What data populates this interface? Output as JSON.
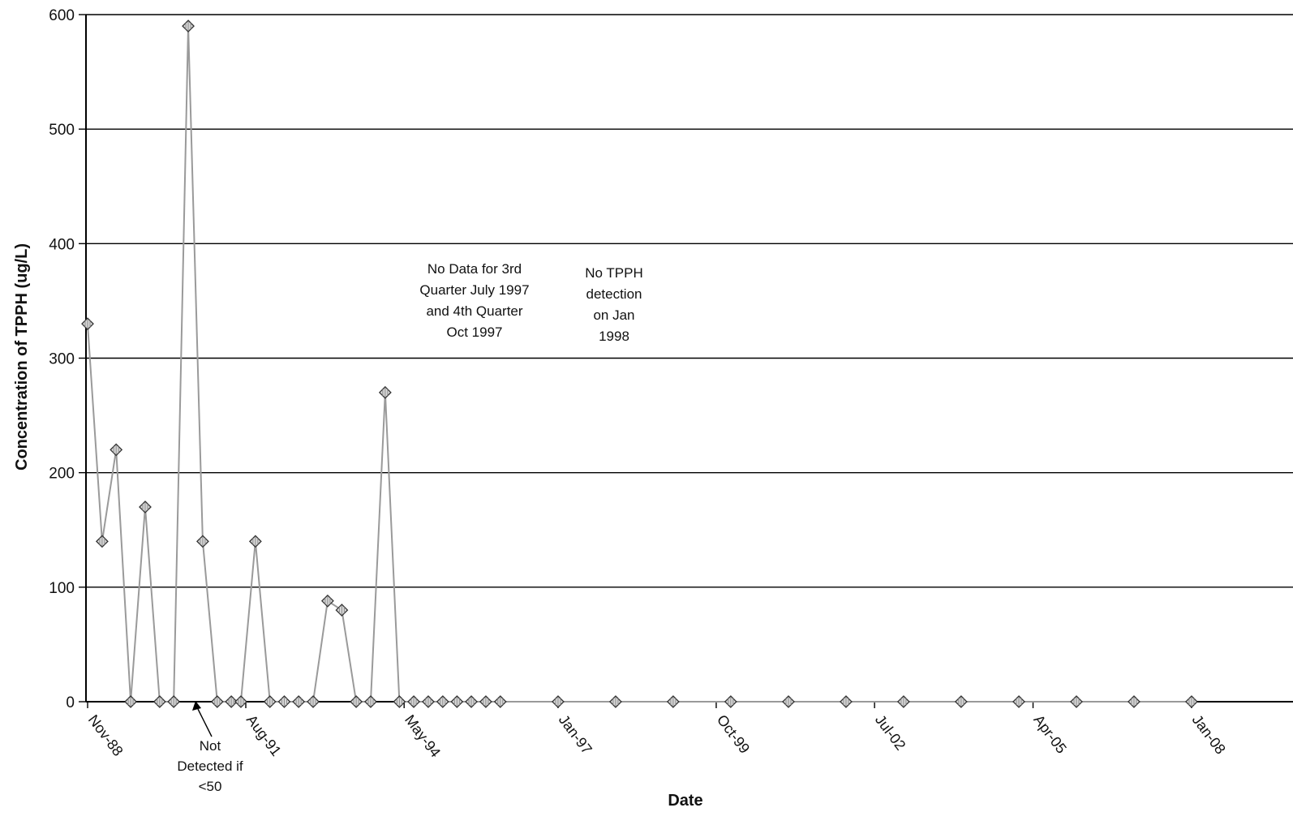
{
  "chart_data": {
    "type": "line",
    "xlabel": "Date",
    "ylabel": "Concentration of TPPH (ug/L)",
    "ylim": [
      0,
      600
    ],
    "yticks": [
      0,
      100,
      200,
      300,
      400,
      500,
      600
    ],
    "xlim": [
      "1988-11-01",
      "2010-11-01"
    ],
    "xticks": [
      {
        "date": "1988-11-01",
        "label": "Nov-88"
      },
      {
        "date": "1991-08-01",
        "label": "Aug-91"
      },
      {
        "date": "1994-05-01",
        "label": "May-94"
      },
      {
        "date": "1997-01-01",
        "label": "Jan-97"
      },
      {
        "date": "1999-10-01",
        "label": "Oct-99"
      },
      {
        "date": "2002-07-01",
        "label": "Jul-02"
      },
      {
        "date": "2005-04-01",
        "label": "Apr-05"
      },
      {
        "date": "2008-01-01",
        "label": "Jan-08"
      }
    ],
    "grid": true,
    "line_color": "#9a9a9a",
    "marker_color": "#8a8a8a",
    "series": [
      {
        "points": [
          [
            "1988-11-01",
            330
          ],
          [
            "1989-02-01",
            140
          ],
          [
            "1989-05-01",
            220
          ],
          [
            "1989-08-01",
            0
          ],
          [
            "1989-11-01",
            170
          ],
          [
            "1990-02-01",
            0
          ],
          [
            "1990-05-01",
            0
          ],
          [
            "1990-08-01",
            590
          ],
          [
            "1990-11-01",
            140
          ],
          [
            "1991-02-01",
            0
          ],
          [
            "1991-05-01",
            0
          ],
          [
            "1991-07-01",
            0
          ],
          [
            "1991-10-01",
            140
          ],
          [
            "1992-01-01",
            0
          ],
          [
            "1992-04-01",
            0
          ],
          [
            "1992-07-01",
            0
          ],
          [
            "1992-10-01",
            0
          ],
          [
            "1993-01-01",
            88
          ],
          [
            "1993-04-01",
            80
          ],
          [
            "1993-07-01",
            0
          ],
          [
            "1993-10-01",
            0
          ],
          [
            "1994-01-01",
            270
          ],
          [
            "1994-04-01",
            0
          ],
          [
            "1994-07-01",
            0
          ],
          [
            "1994-10-01",
            0
          ],
          [
            "1995-01-01",
            0
          ],
          [
            "1995-04-01",
            0
          ],
          [
            "1995-07-01",
            0
          ],
          [
            "1995-10-01",
            0
          ],
          [
            "1996-01-01",
            0
          ],
          [
            "1997-01-01",
            0
          ],
          [
            "1998-01-01",
            0
          ],
          [
            "1999-01-01",
            0
          ],
          [
            "2000-01-01",
            0
          ],
          [
            "2001-01-01",
            0
          ],
          [
            "2002-01-01",
            0
          ],
          [
            "2003-01-01",
            0
          ],
          [
            "2004-01-01",
            0
          ],
          [
            "2005-01-01",
            0
          ],
          [
            "2006-01-01",
            0
          ],
          [
            "2007-01-01",
            0
          ],
          [
            "2008-01-01",
            0
          ]
        ]
      }
    ],
    "annotations": [
      {
        "lines": [
          "No Data for 3rd",
          "Quarter July 1997",
          "and 4th Quarter",
          "Oct 1997"
        ]
      },
      {
        "lines": [
          "No TPPH",
          "detection",
          "on Jan",
          "1998"
        ]
      },
      {
        "lines": [
          "Not",
          "Detected if",
          "<50"
        ]
      }
    ]
  }
}
